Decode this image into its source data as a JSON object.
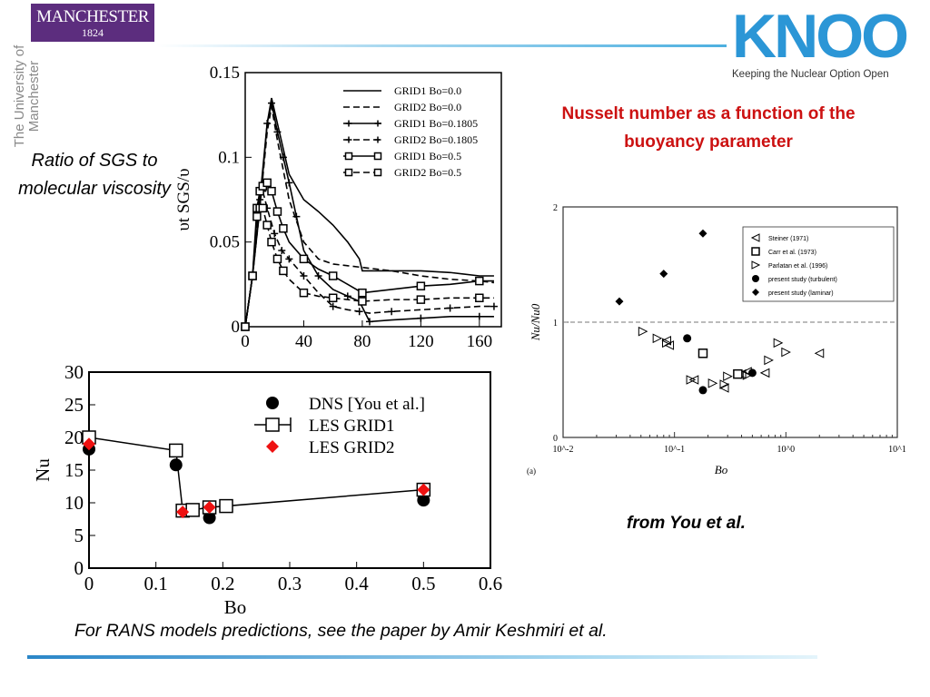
{
  "header": {
    "manchester_logo": {
      "name": "MANCHESTER",
      "year": "1824",
      "purple": "#5c2d7e"
    },
    "university_text": "The University of Manchester",
    "knoo_logo": {
      "word": "KNOO",
      "tagline": "Keeping the Nuclear Option Open",
      "color": "#2b96d6"
    }
  },
  "labels": {
    "ratio_sgs": "Ratio  of SGS to molecular viscosity",
    "nusselt_title": "Nusselt number as a function of the buoyancy parameter",
    "from_you": "from You et al.",
    "rans_note": "For RANS models predictions, see the paper by Amir Keshmiri et al.",
    "title_color": "#cc1111"
  },
  "chart_data": [
    {
      "type": "line",
      "xlim": [
        0,
        175
      ],
      "ylim": [
        0,
        0.15
      ],
      "xticks": [
        0,
        40,
        80,
        120,
        160
      ],
      "yticks": [
        0,
        0.05,
        0.1,
        0.15
      ],
      "ylabel": "υt SGS/υ",
      "legend_position": "top-right",
      "series": [
        {
          "name": "GRID1 Bo=0.0",
          "style": "solid",
          "marker": "none",
          "x": [
            0,
            5,
            10,
            15,
            18,
            22,
            30,
            40,
            50,
            60,
            70,
            78,
            80,
            100,
            120,
            140,
            160,
            170
          ],
          "y": [
            0,
            0.03,
            0.07,
            0.12,
            0.135,
            0.12,
            0.09,
            0.075,
            0.068,
            0.06,
            0.05,
            0.04,
            0.033,
            0.033,
            0.033,
            0.032,
            0.03,
            0.03
          ]
        },
        {
          "name": "GRID2 Bo=0.0",
          "style": "dashed",
          "marker": "none",
          "x": [
            0,
            5,
            10,
            15,
            18,
            22,
            30,
            40,
            50,
            60,
            70,
            80,
            100,
            120,
            140,
            160,
            170
          ],
          "y": [
            0,
            0.03,
            0.07,
            0.115,
            0.13,
            0.11,
            0.075,
            0.05,
            0.04,
            0.037,
            0.036,
            0.035,
            0.033,
            0.03,
            0.028,
            0.027,
            0.026
          ]
        },
        {
          "name": "GRID1 Bo=0.1805",
          "style": "solid",
          "marker": "plus",
          "x": [
            0,
            5,
            10,
            15,
            18,
            22,
            26,
            30,
            35,
            40,
            50,
            60,
            70,
            78,
            85,
            100,
            120,
            140,
            160,
            170
          ],
          "y": [
            0,
            0.03,
            0.075,
            0.12,
            0.132,
            0.115,
            0.1,
            0.085,
            0.065,
            0.045,
            0.03,
            0.022,
            0.018,
            0.015,
            0.003,
            0.004,
            0.005,
            0.006,
            0.006,
            0.006
          ]
        },
        {
          "name": "GRID2 Bo=0.1805",
          "style": "dashed",
          "marker": "plus",
          "x": [
            0,
            5,
            10,
            12,
            15,
            20,
            25,
            30,
            40,
            50,
            60,
            70,
            78,
            85,
            100,
            120,
            140,
            160,
            170
          ],
          "y": [
            0,
            0.03,
            0.08,
            0.08,
            0.07,
            0.055,
            0.045,
            0.04,
            0.03,
            0.02,
            0.012,
            0.01,
            0.009,
            0.008,
            0.009,
            0.01,
            0.011,
            0.012,
            0.012
          ]
        },
        {
          "name": "GRID1 Bo=0.5",
          "style": "solid",
          "marker": "square",
          "x": [
            0,
            5,
            8,
            10,
            12,
            15,
            18,
            22,
            26,
            30,
            40,
            50,
            60,
            70,
            80,
            100,
            120,
            140,
            160,
            170
          ],
          "y": [
            0,
            0.03,
            0.07,
            0.08,
            0.083,
            0.085,
            0.08,
            0.068,
            0.058,
            0.05,
            0.04,
            0.034,
            0.03,
            0.025,
            0.02,
            0.022,
            0.024,
            0.025,
            0.027,
            0.027
          ]
        },
        {
          "name": "GRID2 Bo=0.5",
          "style": "dashed",
          "marker": "square",
          "x": [
            0,
            5,
            8,
            10,
            12,
            15,
            18,
            22,
            26,
            30,
            40,
            50,
            60,
            70,
            80,
            100,
            120,
            140,
            160,
            170
          ],
          "y": [
            0,
            0.03,
            0.065,
            0.07,
            0.07,
            0.06,
            0.05,
            0.04,
            0.033,
            0.028,
            0.02,
            0.018,
            0.017,
            0.016,
            0.015,
            0.016,
            0.016,
            0.017,
            0.017,
            0.017
          ]
        }
      ]
    },
    {
      "type": "scatter",
      "xlim": [
        0,
        0.6
      ],
      "ylim": [
        0,
        30
      ],
      "xticks": [
        0,
        0.1,
        0.2,
        0.3,
        0.4,
        0.5,
        0.6
      ],
      "yticks": [
        0,
        5,
        10,
        15,
        20,
        25,
        30
      ],
      "xlabel": "Bo",
      "ylabel": "Nu",
      "legend_position": "top-right",
      "series": [
        {
          "name": "DNS [You et al.]",
          "marker": "circle",
          "color": "#000000",
          "x": [
            0.0,
            0.13,
            0.18,
            0.5
          ],
          "y": [
            18.2,
            15.8,
            7.7,
            10.4
          ]
        },
        {
          "name": "LES GRID1",
          "marker": "square-line",
          "color": "#000000",
          "x": [
            0.0,
            0.13,
            0.14,
            0.155,
            0.18,
            0.205,
            0.5
          ],
          "y": [
            20.0,
            18.0,
            8.8,
            8.9,
            9.3,
            9.5,
            12.0
          ]
        },
        {
          "name": "LES GRID2",
          "marker": "diamond",
          "color": "#ee1111",
          "x": [
            0.0,
            0.14,
            0.18,
            0.5
          ],
          "y": [
            19.0,
            8.6,
            9.3,
            12.0
          ]
        }
      ]
    },
    {
      "type": "scatter",
      "xscale": "log",
      "xlim": [
        0.01,
        10
      ],
      "ylim": [
        0,
        2
      ],
      "xticks": [
        "10^-2",
        "10^-1",
        "10^0",
        "10^1"
      ],
      "yticks": [
        0,
        1,
        2
      ],
      "xlabel": "Bo",
      "ylabel": "Nu/Nu0",
      "panel_label": "(a)",
      "reference_line": 1,
      "legend_position": "top-right",
      "series": [
        {
          "name": "Steiner (1971)",
          "marker": "triangle-left",
          "x": [
            0.085,
            0.09,
            0.15,
            0.28,
            0.4,
            0.45,
            0.65,
            2.0
          ],
          "y": [
            0.84,
            0.8,
            0.5,
            0.43,
            0.55,
            0.57,
            0.56,
            0.73
          ]
        },
        {
          "name": "Carr et al. (1973)",
          "marker": "square-open",
          "x": [
            0.18,
            0.37
          ],
          "y": [
            0.73,
            0.55
          ]
        },
        {
          "name": "Parlatan et al. (1996)",
          "marker": "triangle-right",
          "x": [
            0.052,
            0.07,
            0.085,
            0.14,
            0.22,
            0.28,
            0.3,
            0.45,
            0.7,
            0.85,
            1.0
          ],
          "y": [
            0.92,
            0.86,
            0.82,
            0.5,
            0.47,
            0.46,
            0.53,
            0.54,
            0.67,
            0.82,
            0.74
          ]
        },
        {
          "name": "present study (turbulent)",
          "marker": "circle-filled",
          "x": [
            0.13,
            0.18,
            0.5
          ],
          "y": [
            0.86,
            0.41,
            0.56
          ]
        },
        {
          "name": "present study (laminar)",
          "marker": "diamond-filled",
          "x": [
            0.032,
            0.08,
            0.18
          ],
          "y": [
            1.18,
            1.42,
            1.77
          ]
        }
      ]
    }
  ]
}
